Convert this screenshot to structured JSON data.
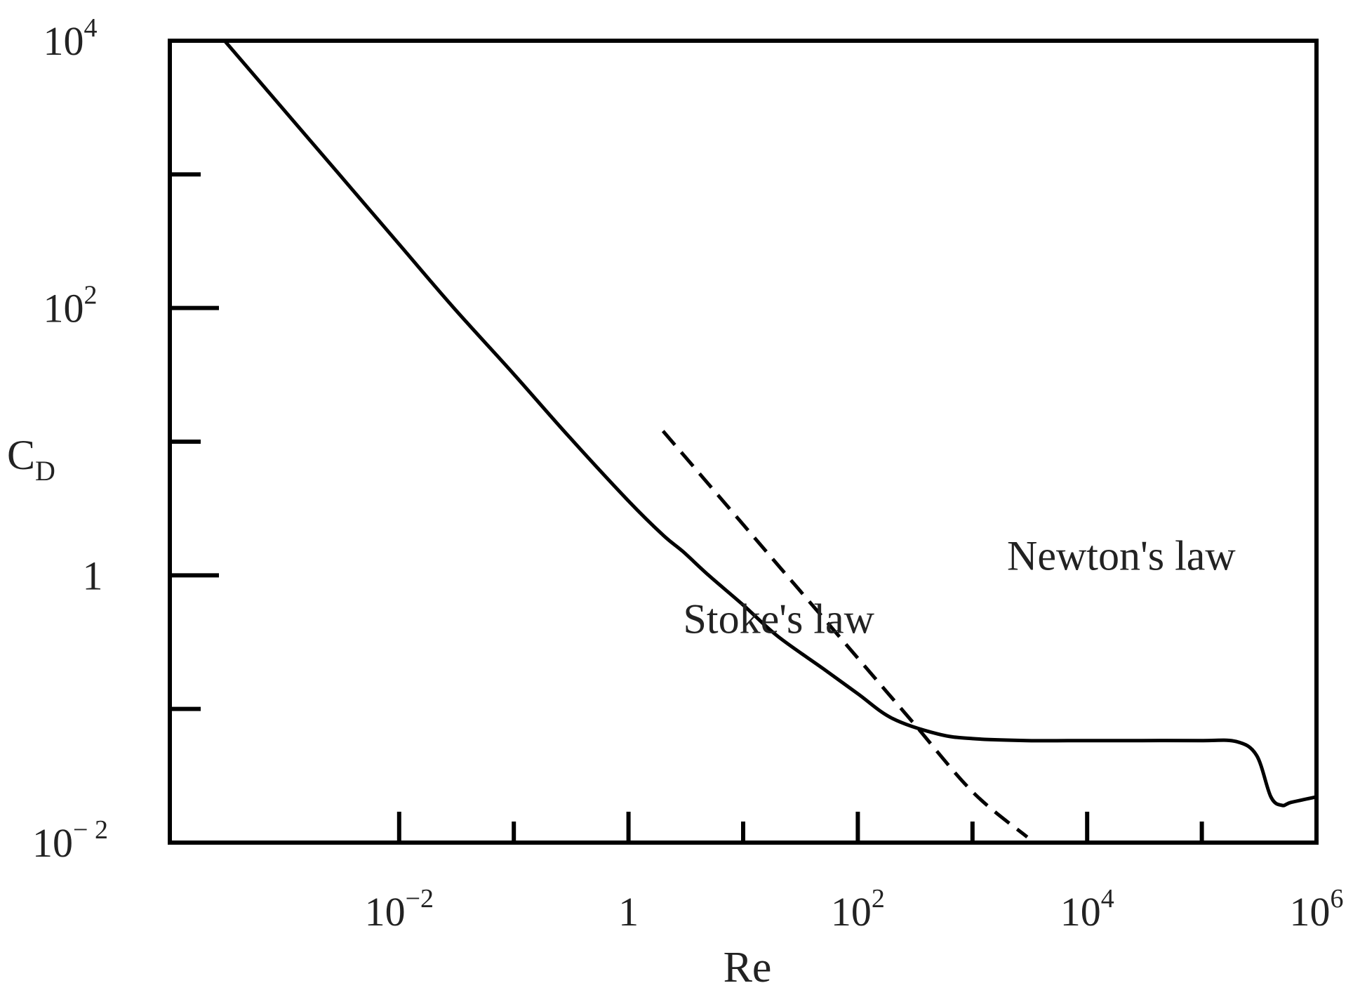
{
  "chart_data": {
    "type": "line",
    "xlabel": "Re",
    "ylabel": "C",
    "ylabel_sub": "D",
    "x_scale": "log",
    "y_scale": "log",
    "xlim": [
      0.0001,
      1000000
    ],
    "ylim": [
      0.01,
      10000
    ],
    "x_major_ticks": [
      {
        "value": 0.01,
        "base": "10",
        "exp": "−2"
      },
      {
        "value": 1,
        "base": "1",
        "exp": ""
      },
      {
        "value": 100,
        "base": "10",
        "exp": "2"
      },
      {
        "value": 10000,
        "base": "10",
        "exp": "4"
      },
      {
        "value": 1000000,
        "base": "10",
        "exp": "6"
      }
    ],
    "x_minor_ticks": [
      0.1,
      10,
      1000,
      100000
    ],
    "y_major_ticks": [
      {
        "value": 10000,
        "base": "10",
        "exp": "4"
      },
      {
        "value": 100,
        "base": "10",
        "exp": "2"
      },
      {
        "value": 1,
        "base": "1",
        "exp": ""
      },
      {
        "value": 0.01,
        "base": "10",
        "exp": "− 2"
      }
    ],
    "y_minor_ticks": [
      1000,
      10,
      0.1
    ],
    "grid": false,
    "legend": "none",
    "series": [
      {
        "style": "solid",
        "x": [
          0.0003,
          0.001,
          0.003,
          0.01,
          0.03,
          0.1,
          0.3,
          1,
          2,
          3,
          5,
          10,
          20,
          50,
          100,
          200,
          500,
          1000,
          3000,
          10000,
          30000,
          100000,
          200000,
          300000,
          400000,
          500000,
          600000,
          1000000
        ],
        "y": [
          10000,
          3000,
          1000,
          300,
          100,
          32,
          11,
          3.6,
          2.0,
          1.5,
          1.0,
          0.6,
          0.35,
          0.2,
          0.13,
          0.085,
          0.065,
          0.06,
          0.058,
          0.058,
          0.058,
          0.058,
          0.057,
          0.045,
          0.022,
          0.019,
          0.02,
          0.022
        ]
      },
      {
        "style": "dashed",
        "x": [
          2,
          3,
          10,
          30,
          100,
          300,
          1000,
          3000
        ],
        "y": [
          12,
          8,
          2.4,
          0.8,
          0.24,
          0.08,
          0.024,
          0.011
        ]
      }
    ],
    "annotations": [
      {
        "text": "Newton's law",
        "x": 2000,
        "y": 1.4
      },
      {
        "text": "Stoke's law",
        "x": 3,
        "y": 0.47
      }
    ]
  }
}
